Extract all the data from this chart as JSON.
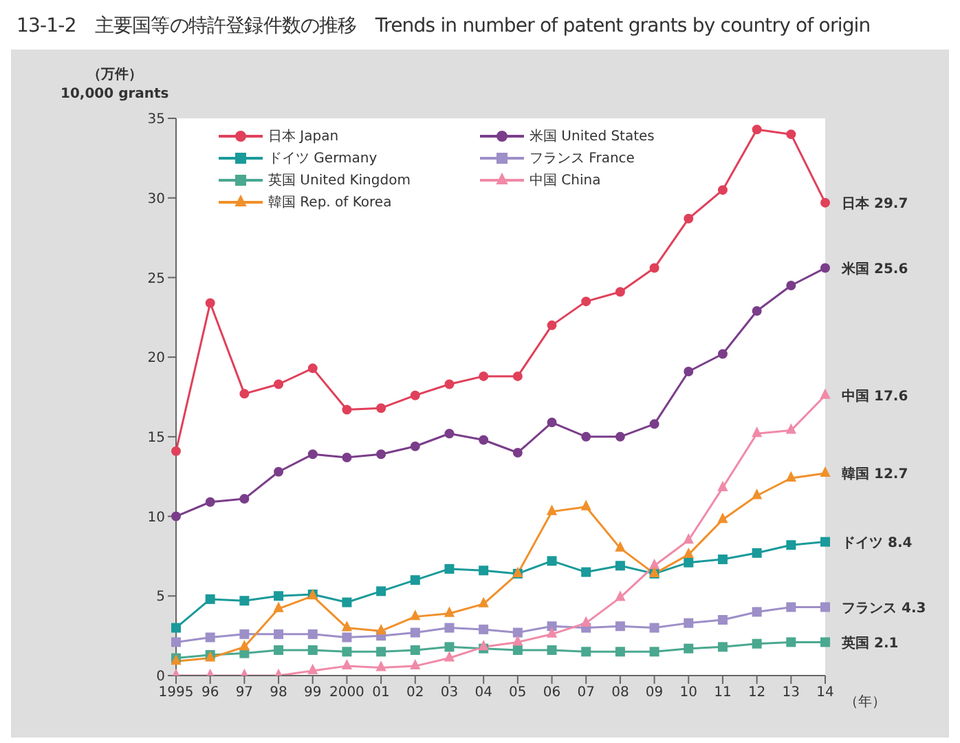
{
  "chart_data": {
    "type": "line",
    "title": "13-1-2　主要国等の特許登録件数の推移　Trends in number of patent grants by country of origin",
    "ylabel": "（万件）\n10,000 grants",
    "xlabel": "（年）",
    "categories": [
      "1995",
      "96",
      "97",
      "98",
      "99",
      "2000",
      "01",
      "02",
      "03",
      "04",
      "05",
      "06",
      "07",
      "08",
      "09",
      "10",
      "11",
      "12",
      "13",
      "14"
    ],
    "series": [
      {
        "name": "日本 Japan",
        "color": "#e0405a",
        "marker": "circle",
        "values": [
          14.1,
          23.4,
          17.7,
          18.3,
          19.3,
          16.7,
          16.8,
          17.6,
          18.3,
          18.8,
          18.8,
          22.0,
          23.5,
          24.1,
          25.6,
          28.7,
          30.5,
          34.3,
          34.0,
          29.7
        ]
      },
      {
        "name": "米国 United States",
        "color": "#7a3d8a",
        "marker": "circle",
        "values": [
          10.0,
          10.9,
          11.1,
          12.8,
          13.9,
          13.7,
          13.9,
          14.4,
          15.2,
          14.8,
          14.0,
          15.9,
          15.0,
          15.0,
          15.8,
          19.1,
          20.2,
          22.9,
          24.5,
          25.6
        ]
      },
      {
        "name": "ドイツ Germany",
        "color": "#1a9a9a",
        "marker": "square",
        "values": [
          3.0,
          4.8,
          4.7,
          5.0,
          5.1,
          4.6,
          5.3,
          6.0,
          6.7,
          6.6,
          6.4,
          7.2,
          6.5,
          6.9,
          6.4,
          7.1,
          7.3,
          7.7,
          8.2,
          8.4
        ]
      },
      {
        "name": "フランス France",
        "color": "#9d8fc8",
        "marker": "square",
        "values": [
          2.1,
          2.4,
          2.6,
          2.6,
          2.6,
          2.4,
          2.5,
          2.7,
          3.0,
          2.9,
          2.7,
          3.1,
          3.0,
          3.1,
          3.0,
          3.3,
          3.5,
          4.0,
          4.3,
          4.3
        ]
      },
      {
        "name": "英国 United Kingdom",
        "color": "#4aa890",
        "marker": "square",
        "values": [
          1.1,
          1.3,
          1.4,
          1.6,
          1.6,
          1.5,
          1.5,
          1.6,
          1.8,
          1.7,
          1.6,
          1.6,
          1.5,
          1.5,
          1.5,
          1.7,
          1.8,
          2.0,
          2.1,
          2.1
        ]
      },
      {
        "name": "中国 China",
        "color": "#f08aa8",
        "marker": "triangle",
        "values": [
          0.0,
          0.0,
          0.0,
          0.0,
          0.3,
          0.6,
          0.5,
          0.6,
          1.1,
          1.8,
          2.1,
          2.6,
          3.3,
          4.9,
          6.9,
          8.5,
          11.8,
          15.2,
          15.4,
          17.6
        ]
      },
      {
        "name": "韓国 Rep. of Korea",
        "color": "#f0902a",
        "marker": "triangle",
        "values": [
          0.9,
          1.1,
          1.8,
          4.2,
          5.0,
          3.0,
          2.8,
          3.7,
          3.9,
          4.5,
          6.4,
          10.3,
          10.6,
          8.0,
          6.4,
          7.6,
          9.8,
          11.3,
          12.4,
          12.7
        ]
      }
    ],
    "ylim": [
      0,
      35
    ],
    "yticks": [
      0,
      5,
      10,
      15,
      20,
      25,
      30,
      35
    ],
    "grid": false,
    "legend": "top left",
    "annotations": [
      {
        "text": "日本 29.7",
        "x": "14",
        "y": 29.7
      },
      {
        "text": "米国 25.6",
        "x": "14",
        "y": 25.6
      },
      {
        "text": "中国 17.6",
        "x": "14",
        "y": 17.6
      },
      {
        "text": "韓国 12.7",
        "x": "14",
        "y": 12.7
      },
      {
        "text": "ドイツ 8.4",
        "x": "14",
        "y": 8.4
      },
      {
        "text": "フランス 4.3",
        "x": "14",
        "y": 4.3
      },
      {
        "text": "英国 2.1",
        "x": "14",
        "y": 2.1
      }
    ]
  }
}
